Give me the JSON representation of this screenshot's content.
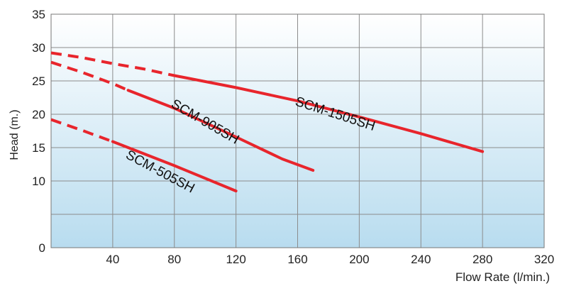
{
  "chart_data": {
    "type": "line",
    "xlabel": "Flow Rate (l/min.)",
    "ylabel": "Head (m.)",
    "xlim": [
      0,
      320
    ],
    "ylim": [
      0,
      35
    ],
    "x_ticks": [
      "40",
      "80",
      "120",
      "160",
      "200",
      "240",
      "280",
      "320"
    ],
    "y_ticks": [
      "0",
      "10",
      "15",
      "20",
      "25",
      "30",
      "35"
    ],
    "grid": true,
    "line_color": "#e8252c",
    "background_gradient": [
      "#ffffff",
      "#b8dcef"
    ],
    "series": [
      {
        "name": "SCM-1505SH",
        "dashed": [
          [
            0,
            29.2
          ],
          [
            20,
            28.5
          ],
          [
            40,
            27.6
          ],
          [
            60,
            26.8
          ],
          [
            80,
            25.8
          ]
        ],
        "solid": [
          [
            80,
            25.8
          ],
          [
            120,
            24.0
          ],
          [
            160,
            22.0
          ],
          [
            200,
            19.6
          ],
          [
            240,
            17.1
          ],
          [
            280,
            14.4
          ]
        ]
      },
      {
        "name": "SCM-905SH",
        "dashed": [
          [
            0,
            27.8
          ],
          [
            20,
            26.3
          ],
          [
            40,
            24.6
          ],
          [
            50,
            23.6
          ]
        ],
        "solid": [
          [
            50,
            23.6
          ],
          [
            80,
            20.9
          ],
          [
            120,
            16.6
          ],
          [
            150,
            13.3
          ],
          [
            170,
            11.6
          ]
        ]
      },
      {
        "name": "SCM-505SH",
        "dashed": [
          [
            0,
            19.2
          ],
          [
            20,
            17.6
          ],
          [
            40,
            15.9
          ]
        ],
        "solid": [
          [
            40,
            15.9
          ],
          [
            80,
            12.3
          ],
          [
            120,
            8.5
          ]
        ]
      }
    ]
  }
}
